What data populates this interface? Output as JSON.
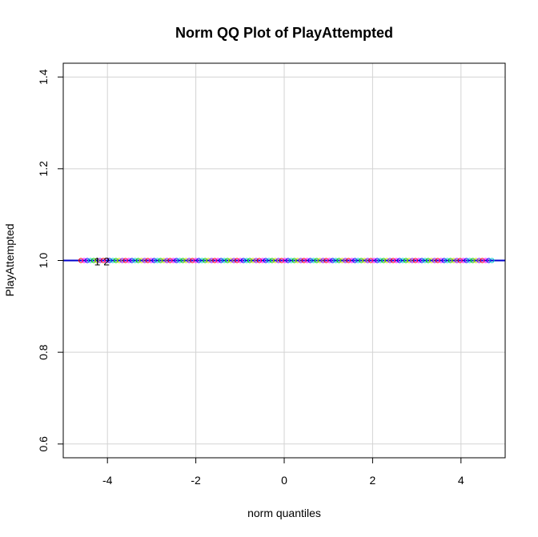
{
  "chart_data": {
    "type": "scatter",
    "title": "Norm QQ Plot of PlayAttempted",
    "xlabel": "norm quantiles",
    "ylabel": "PlayAttempted",
    "xlim": [
      -5.0,
      5.0
    ],
    "ylim": [
      0.57,
      1.43
    ],
    "xticks": [
      -4,
      -2,
      0,
      2,
      4
    ],
    "xtick_labels": [
      "-4",
      "-2",
      "0",
      "2",
      "4"
    ],
    "yticks": [
      0.6,
      0.8,
      1.0,
      1.2,
      1.4
    ],
    "ytick_labels": [
      "0.6",
      "0.8",
      "1.0",
      "1.2",
      "1.4"
    ],
    "grid": true,
    "reference_line": {
      "y": 1.0,
      "color": "#0000cc"
    },
    "point_value": 1.0,
    "point_x_range": [
      -4.6,
      4.7
    ],
    "point_colors": [
      "#ff0000",
      "#ff00ff",
      "#0000ff",
      "#00cccc",
      "#00cc00",
      "#cccc00",
      "#8800ff"
    ],
    "point_annotation": {
      "text": "1 2",
      "x": -4.3,
      "y": 1.0
    }
  }
}
